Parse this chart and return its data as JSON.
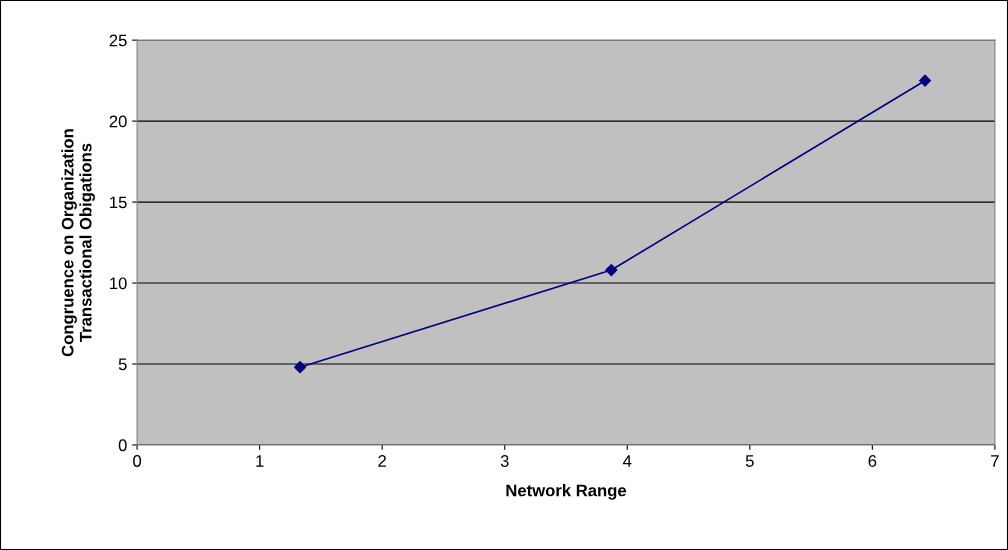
{
  "chart_data": {
    "type": "line",
    "xlabel": "Network Range",
    "ylabel": "Congruence on Organization\nTransactional Obigations",
    "series": [
      {
        "color": "#000080",
        "x": [
          1.33,
          3.87,
          6.43
        ],
        "values": [
          4.8,
          10.8,
          22.5
        ]
      }
    ],
    "xlim": [
      0,
      7
    ],
    "xticks": [
      0,
      1,
      2,
      3,
      4,
      5,
      6,
      7
    ],
    "ylim": [
      0,
      25
    ],
    "yticks": [
      0,
      5,
      10,
      15,
      20,
      25
    ],
    "grid": "y",
    "marker": "diamond",
    "line_style": "solid"
  }
}
